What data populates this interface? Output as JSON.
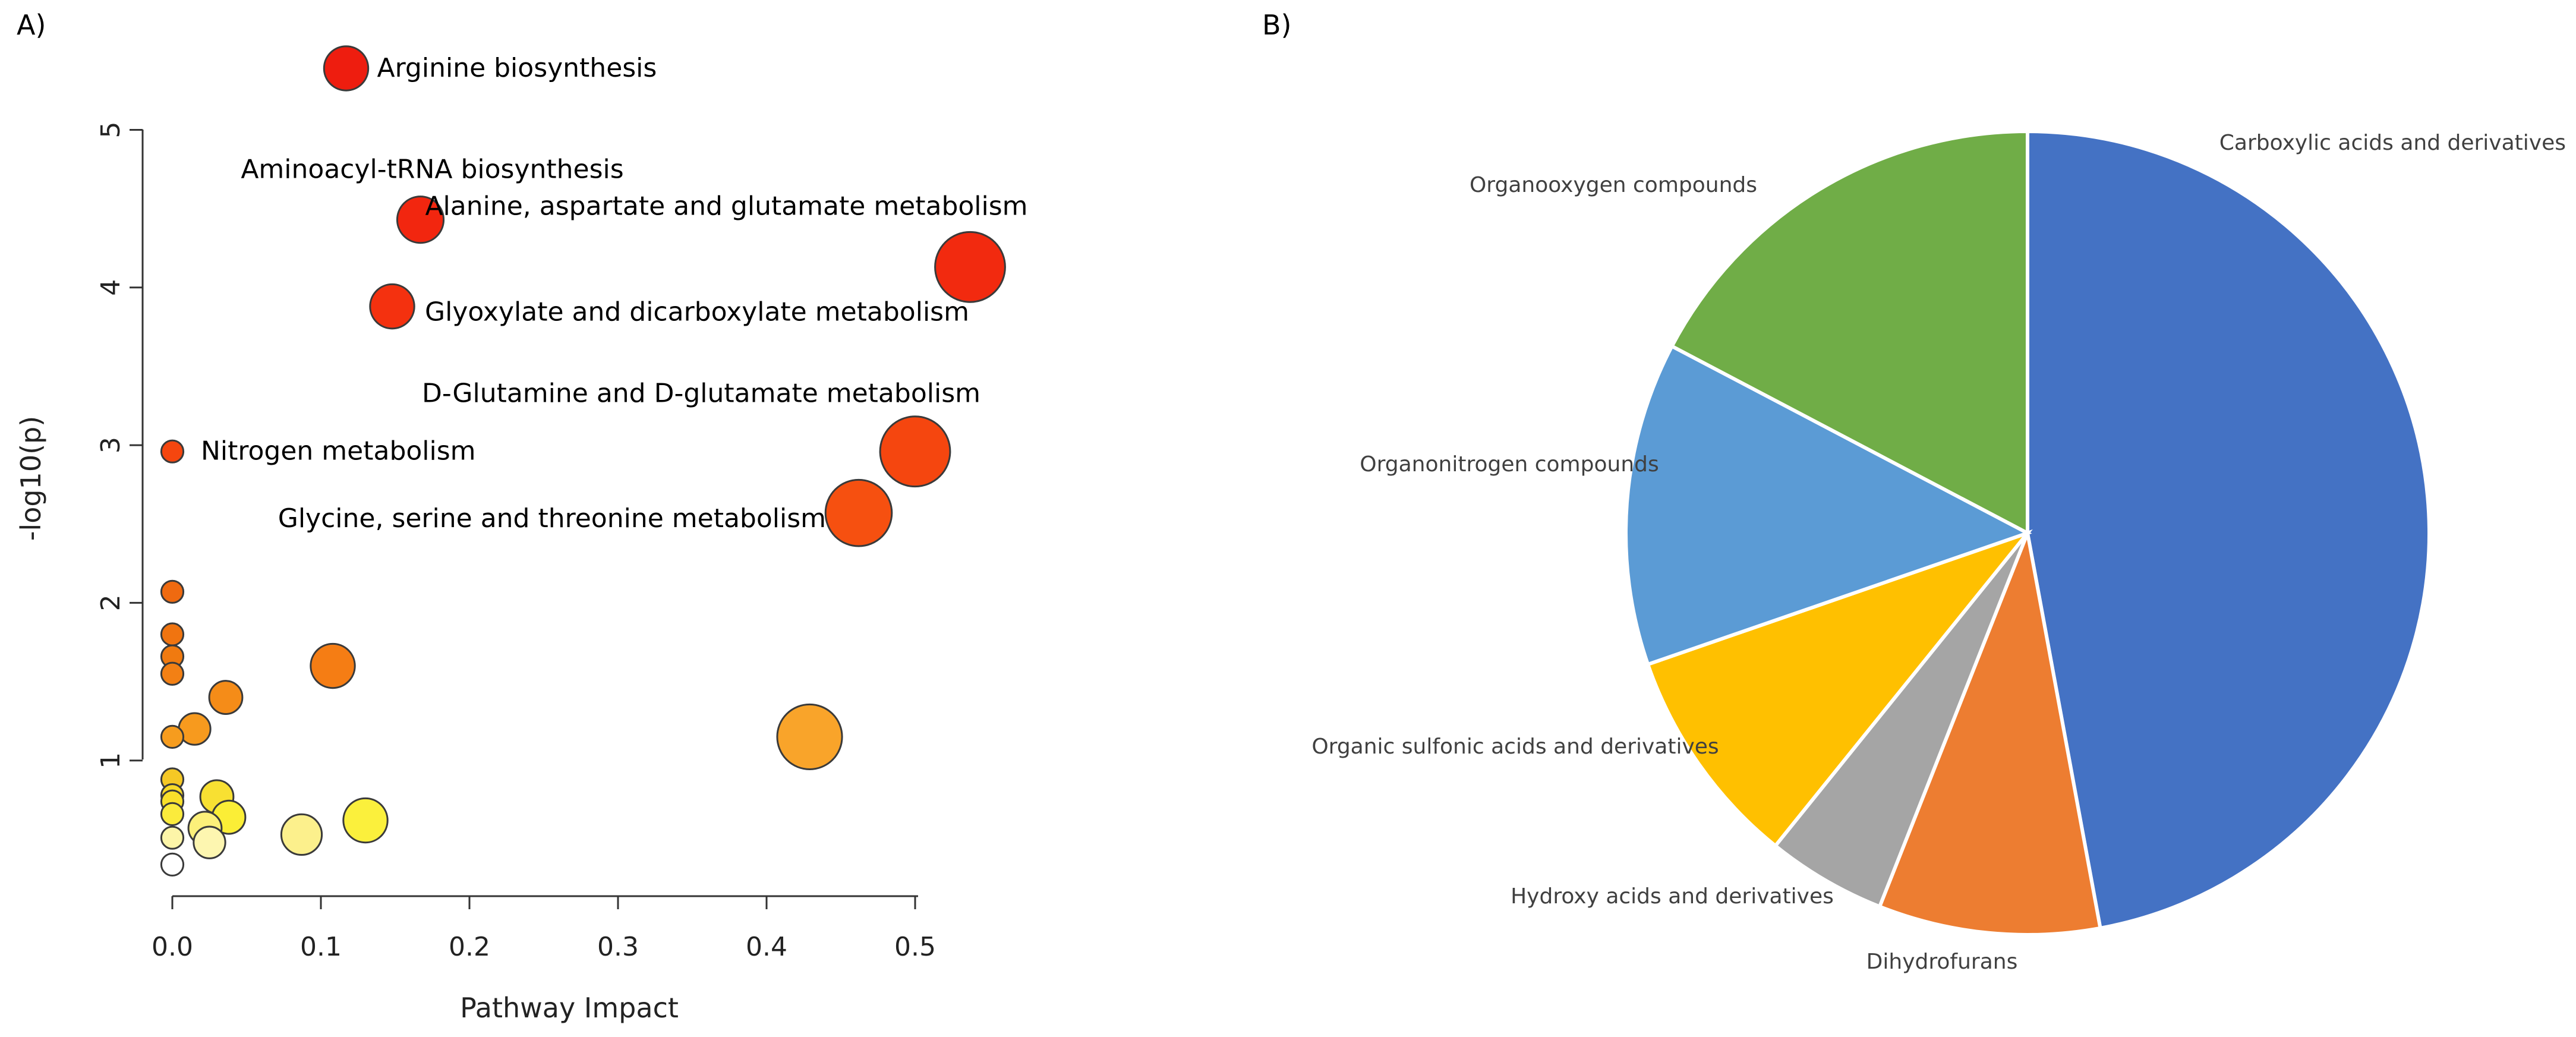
{
  "chart_data": [
    {
      "panel": "A)",
      "type": "scatter",
      "title": "",
      "xlabel": "Pathway Impact",
      "ylabel": "-log10(p)",
      "xlim": [
        0.0,
        0.55
      ],
      "ylim": [
        0,
        5
      ],
      "xticks": [
        "0.0",
        "0.1",
        "0.2",
        "0.3",
        "0.4",
        "0.5"
      ],
      "yticks": [
        "1",
        "2",
        "3",
        "4",
        "5"
      ],
      "points": [
        {
          "x": 0.117,
          "y": 5.39,
          "r": 0.6,
          "color": "#ee1d0f",
          "label": "Arginine biosynthesis"
        },
        {
          "x": 0.167,
          "y": 4.43,
          "r": 0.63,
          "color": "#f2260f",
          "label": "Aminoacyl-tRNA biosynthesis"
        },
        {
          "x": 0.537,
          "y": 4.13,
          "r": 0.95,
          "color": "#f22a0f",
          "label": "Alanine, aspartate and glutamate metabolism"
        },
        {
          "x": 0.148,
          "y": 3.88,
          "r": 0.6,
          "color": "#f4310f",
          "label": "Glyoxylate and dicarboxylate metabolism"
        },
        {
          "x": 0.5,
          "y": 2.96,
          "r": 0.95,
          "color": "#f5460f",
          "label": "D-Glutamine and D-glutamate metabolism"
        },
        {
          "x": 0.0,
          "y": 2.96,
          "r": 0.3,
          "color": "#f5460f",
          "label": "Nitrogen metabolism"
        },
        {
          "x": 0.462,
          "y": 2.57,
          "r": 0.9,
          "color": "#f65010",
          "label": "Glycine, serine and threonine metabolism"
        },
        {
          "x": 0.0,
          "y": 2.07,
          "r": 0.3,
          "color": "#ef6a10",
          "label": ""
        },
        {
          "x": 0.0,
          "y": 1.8,
          "r": 0.3,
          "color": "#f07410",
          "label": ""
        },
        {
          "x": 0.0,
          "y": 1.66,
          "r": 0.3,
          "color": "#f07a10",
          "label": ""
        },
        {
          "x": 0.0,
          "y": 1.55,
          "r": 0.3,
          "color": "#f38014",
          "label": ""
        },
        {
          "x": 0.108,
          "y": 1.6,
          "r": 0.6,
          "color": "#f57d14",
          "label": ""
        },
        {
          "x": 0.036,
          "y": 1.4,
          "r": 0.45,
          "color": "#f58c18",
          "label": ""
        },
        {
          "x": 0.015,
          "y": 1.2,
          "r": 0.43,
          "color": "#f79a1e",
          "label": ""
        },
        {
          "x": 0.0,
          "y": 1.15,
          "r": 0.3,
          "color": "#f69c1e",
          "label": ""
        },
        {
          "x": 0.429,
          "y": 1.15,
          "r": 0.88,
          "color": "#f9a42a",
          "label": ""
        },
        {
          "x": 0.0,
          "y": 0.88,
          "r": 0.3,
          "color": "#f5c825",
          "label": ""
        },
        {
          "x": 0.0,
          "y": 0.78,
          "r": 0.3,
          "color": "#f7da28",
          "label": ""
        },
        {
          "x": 0.0,
          "y": 0.74,
          "r": 0.3,
          "color": "#f9e02a",
          "label": ""
        },
        {
          "x": 0.03,
          "y": 0.77,
          "r": 0.45,
          "color": "#f8e032",
          "label": ""
        },
        {
          "x": 0.0,
          "y": 0.66,
          "r": 0.3,
          "color": "#fbeb3c",
          "label": ""
        },
        {
          "x": 0.038,
          "y": 0.64,
          "r": 0.45,
          "color": "#fbee36",
          "label": ""
        },
        {
          "x": 0.13,
          "y": 0.62,
          "r": 0.6,
          "color": "#fbf03c",
          "label": ""
        },
        {
          "x": 0.022,
          "y": 0.57,
          "r": 0.45,
          "color": "#fcf07a",
          "label": ""
        },
        {
          "x": 0.087,
          "y": 0.53,
          "r": 0.55,
          "color": "#fcf08c",
          "label": ""
        },
        {
          "x": 0.0,
          "y": 0.51,
          "r": 0.3,
          "color": "#fdf5a8",
          "label": ""
        },
        {
          "x": 0.025,
          "y": 0.48,
          "r": 0.43,
          "color": "#fdf6b0",
          "label": ""
        },
        {
          "x": 0.0,
          "y": 0.34,
          "r": 0.3,
          "color": "#ffffff",
          "label": ""
        }
      ]
    },
    {
      "panel": "B)",
      "type": "pie",
      "title": "",
      "slices": [
        {
          "label": "Carboxylic acids and derivatives",
          "value": 47.1,
          "color": "#4472c4"
        },
        {
          "label": "Dihydrofurans",
          "value": 8.9,
          "color": "#ed7d31"
        },
        {
          "label": "Hydroxy acids and derivatives",
          "value": 4.8,
          "color": "#a5a5a5"
        },
        {
          "label": "Organic sulfonic acids and derivatives",
          "value": 8.9,
          "color": "#ffc000"
        },
        {
          "label": "Organonitrogen compounds",
          "value": 13.0,
          "color": "#5b9bd5"
        },
        {
          "label": "Organooxygen compounds",
          "value": 17.3,
          "color": "#70ad47"
        }
      ]
    }
  ]
}
